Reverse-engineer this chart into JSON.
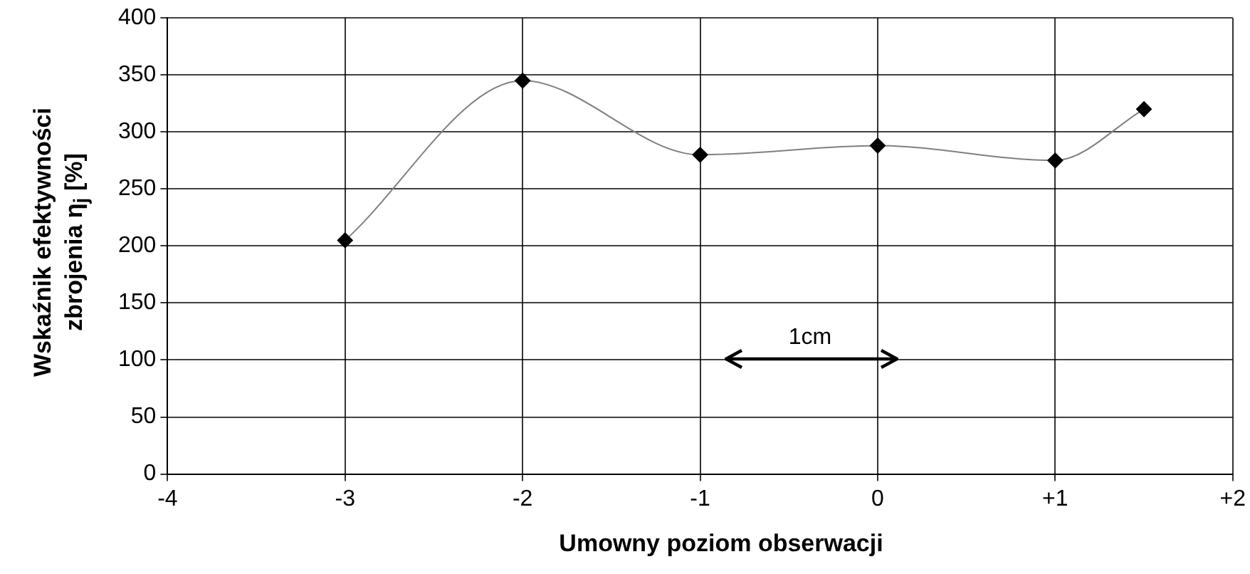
{
  "chart_data": {
    "type": "line",
    "xlabel": "Umowny poziom obserwacji",
    "ylabel": "Wskaźnik efektywności zbrojenia η$_{j}$ [%]",
    "x": [
      -3,
      -2,
      -1,
      0,
      1,
      1.5
    ],
    "series": [
      {
        "color": "#808080",
        "values": [
          205,
          345,
          280,
          288,
          275,
          320
        ]
      }
    ],
    "xlim": [
      -4,
      2
    ],
    "xticks": [
      -4,
      -3,
      -2,
      -1,
      0,
      {
        "value": 1,
        "label": "+1"
      },
      {
        "value": 2,
        "label": "+2"
      }
    ],
    "ylim": [
      0,
      400
    ],
    "yticks": [
      0,
      50,
      100,
      150,
      200,
      250,
      300,
      350,
      400
    ],
    "grid": true,
    "legend": false,
    "marker": "diamond",
    "line_style": "solid",
    "annotations": [
      "1cm"
    ]
  }
}
